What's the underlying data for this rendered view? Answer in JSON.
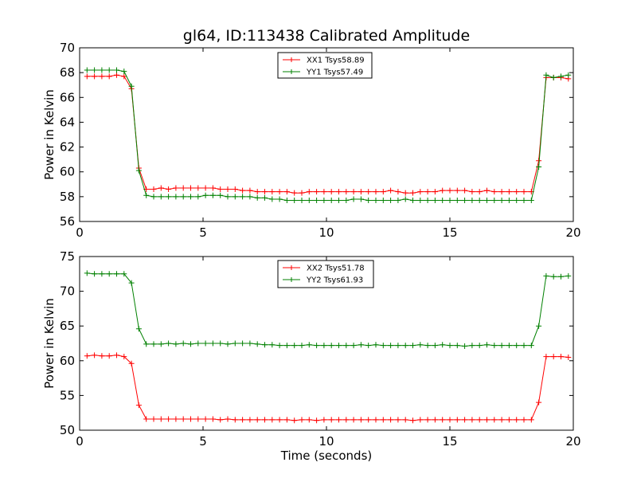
{
  "chart_data": [
    {
      "type": "line",
      "title": "gl64, ID:113438 Calibrated Amplitude",
      "xlabel": "",
      "ylabel": "Power in Kelvin",
      "xlim": [
        0,
        20
      ],
      "ylim": [
        56,
        70
      ],
      "xticks": [
        "0",
        "5",
        "10",
        "15",
        "20"
      ],
      "yticks": [
        "56",
        "58",
        "60",
        "62",
        "64",
        "66",
        "68",
        "70"
      ],
      "legend_position": "top-center",
      "grid": false,
      "x": [
        0.3,
        0.6,
        0.9,
        1.2,
        1.5,
        1.8,
        2.1,
        2.4,
        2.7,
        3.0,
        3.3,
        3.6,
        3.9,
        4.2,
        4.5,
        4.8,
        5.1,
        5.4,
        5.7,
        6.0,
        6.3,
        6.6,
        6.9,
        7.2,
        7.5,
        7.8,
        8.1,
        8.4,
        8.7,
        9.0,
        9.3,
        9.6,
        9.9,
        10.2,
        10.5,
        10.8,
        11.1,
        11.4,
        11.7,
        12.0,
        12.3,
        12.6,
        12.9,
        13.2,
        13.5,
        13.8,
        14.1,
        14.4,
        14.7,
        15.0,
        15.3,
        15.6,
        15.9,
        16.2,
        16.5,
        16.8,
        17.1,
        17.4,
        17.7,
        18.0,
        18.3,
        18.6,
        18.9,
        19.2,
        19.5,
        19.8
      ],
      "series": [
        {
          "name": "XX1 Tsys58.89",
          "color": "#ff0000",
          "values": [
            67.7,
            67.7,
            67.7,
            67.7,
            67.8,
            67.7,
            66.7,
            60.3,
            58.6,
            58.6,
            58.7,
            58.6,
            58.7,
            58.7,
            58.7,
            58.7,
            58.7,
            58.7,
            58.6,
            58.6,
            58.6,
            58.5,
            58.5,
            58.4,
            58.4,
            58.4,
            58.4,
            58.4,
            58.3,
            58.3,
            58.4,
            58.4,
            58.4,
            58.4,
            58.4,
            58.4,
            58.4,
            58.4,
            58.4,
            58.4,
            58.4,
            58.5,
            58.4,
            58.3,
            58.3,
            58.4,
            58.4,
            58.4,
            58.5,
            58.5,
            58.5,
            58.5,
            58.4,
            58.4,
            58.5,
            58.4,
            58.4,
            58.4,
            58.4,
            58.4,
            58.4,
            60.9,
            67.6,
            67.6,
            67.6,
            67.5
          ]
        },
        {
          "name": "YY1 Tsys57.49",
          "color": "#008000",
          "values": [
            68.2,
            68.2,
            68.2,
            68.2,
            68.2,
            68.1,
            66.9,
            60.1,
            58.1,
            58.0,
            58.0,
            58.0,
            58.0,
            58.0,
            58.0,
            58.0,
            58.1,
            58.1,
            58.1,
            58.0,
            58.0,
            58.0,
            58.0,
            57.9,
            57.9,
            57.8,
            57.8,
            57.7,
            57.7,
            57.7,
            57.7,
            57.7,
            57.7,
            57.7,
            57.7,
            57.7,
            57.8,
            57.8,
            57.7,
            57.7,
            57.7,
            57.7,
            57.7,
            57.8,
            57.7,
            57.7,
            57.7,
            57.7,
            57.7,
            57.7,
            57.7,
            57.7,
            57.7,
            57.7,
            57.7,
            57.7,
            57.7,
            57.7,
            57.7,
            57.7,
            57.7,
            60.4,
            67.8,
            67.6,
            67.7,
            67.8
          ]
        }
      ]
    },
    {
      "type": "line",
      "title": "",
      "xlabel": "Time (seconds)",
      "ylabel": "Power in Kelvin",
      "xlim": [
        0,
        20
      ],
      "ylim": [
        50,
        75
      ],
      "xticks": [
        "0",
        "5",
        "10",
        "15",
        "20"
      ],
      "yticks": [
        "50",
        "55",
        "60",
        "65",
        "70",
        "75"
      ],
      "legend_position": "top-center",
      "grid": false,
      "x": [
        0.3,
        0.6,
        0.9,
        1.2,
        1.5,
        1.8,
        2.1,
        2.4,
        2.7,
        3.0,
        3.3,
        3.6,
        3.9,
        4.2,
        4.5,
        4.8,
        5.1,
        5.4,
        5.7,
        6.0,
        6.3,
        6.6,
        6.9,
        7.2,
        7.5,
        7.8,
        8.1,
        8.4,
        8.7,
        9.0,
        9.3,
        9.6,
        9.9,
        10.2,
        10.5,
        10.8,
        11.1,
        11.4,
        11.7,
        12.0,
        12.3,
        12.6,
        12.9,
        13.2,
        13.5,
        13.8,
        14.1,
        14.4,
        14.7,
        15.0,
        15.3,
        15.6,
        15.9,
        16.2,
        16.5,
        16.8,
        17.1,
        17.4,
        17.7,
        18.0,
        18.3,
        18.6,
        18.9,
        19.2,
        19.5,
        19.8
      ],
      "series": [
        {
          "name": "XX2 Tsys51.78",
          "color": "#ff0000",
          "values": [
            60.7,
            60.8,
            60.7,
            60.7,
            60.8,
            60.6,
            59.6,
            53.6,
            51.6,
            51.6,
            51.6,
            51.6,
            51.6,
            51.6,
            51.6,
            51.6,
            51.6,
            51.6,
            51.5,
            51.6,
            51.5,
            51.5,
            51.5,
            51.5,
            51.5,
            51.5,
            51.5,
            51.5,
            51.4,
            51.5,
            51.5,
            51.4,
            51.5,
            51.5,
            51.5,
            51.5,
            51.5,
            51.5,
            51.5,
            51.5,
            51.5,
            51.5,
            51.5,
            51.5,
            51.4,
            51.5,
            51.5,
            51.5,
            51.5,
            51.5,
            51.5,
            51.5,
            51.5,
            51.5,
            51.5,
            51.5,
            51.5,
            51.5,
            51.5,
            51.5,
            51.5,
            54.0,
            60.6,
            60.6,
            60.6,
            60.5
          ]
        },
        {
          "name": "YY2 Tsys61.93",
          "color": "#008000",
          "values": [
            72.6,
            72.5,
            72.5,
            72.5,
            72.5,
            72.5,
            71.2,
            64.6,
            62.4,
            62.4,
            62.4,
            62.5,
            62.4,
            62.5,
            62.4,
            62.5,
            62.5,
            62.5,
            62.5,
            62.4,
            62.5,
            62.5,
            62.5,
            62.4,
            62.3,
            62.3,
            62.2,
            62.2,
            62.2,
            62.2,
            62.3,
            62.2,
            62.2,
            62.2,
            62.2,
            62.2,
            62.2,
            62.3,
            62.2,
            62.3,
            62.2,
            62.2,
            62.2,
            62.2,
            62.2,
            62.3,
            62.2,
            62.2,
            62.3,
            62.2,
            62.2,
            62.1,
            62.2,
            62.2,
            62.3,
            62.2,
            62.2,
            62.2,
            62.2,
            62.2,
            62.2,
            65.0,
            72.2,
            72.1,
            72.1,
            72.2
          ]
        }
      ]
    }
  ]
}
